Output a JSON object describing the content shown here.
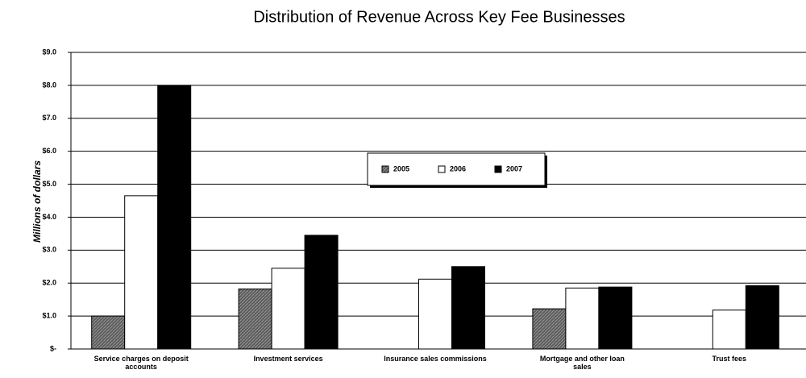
{
  "chart_data": {
    "type": "bar",
    "title": "Distribution of Revenue Across Key Fee Businesses",
    "y_label": "Millions of dollars",
    "categories": [
      "Service charges on deposit accounts",
      "Investment services",
      "Insurance sales commissions",
      "Mortgage and other loan sales",
      "Trust fees"
    ],
    "series": [
      {
        "name": "2005",
        "color": "#5a5a5a",
        "values": [
          1.0,
          1.82,
          null,
          1.22,
          null
        ]
      },
      {
        "name": "2006",
        "color": "#ffffff",
        "values": [
          4.65,
          2.45,
          2.12,
          1.85,
          1.18
        ]
      },
      {
        "name": "2007",
        "color": "#000000",
        "values": [
          8.0,
          3.45,
          2.5,
          1.88,
          1.92
        ]
      }
    ],
    "ylim": [
      0,
      9
    ],
    "yticks": [
      {
        "value": 0,
        "label": "$-"
      },
      {
        "value": 1,
        "label": "$1.0"
      },
      {
        "value": 2,
        "label": "$2.0"
      },
      {
        "value": 3,
        "label": "$3.0"
      },
      {
        "value": 4,
        "label": "$4.0"
      },
      {
        "value": 5,
        "label": "$5.0"
      },
      {
        "value": 6,
        "label": "$6.0"
      },
      {
        "value": 7,
        "label": "$7.0"
      },
      {
        "value": 8,
        "label": "$8.0"
      },
      {
        "value": 9,
        "label": "$9.0"
      }
    ],
    "grid": true,
    "legend": "center"
  }
}
